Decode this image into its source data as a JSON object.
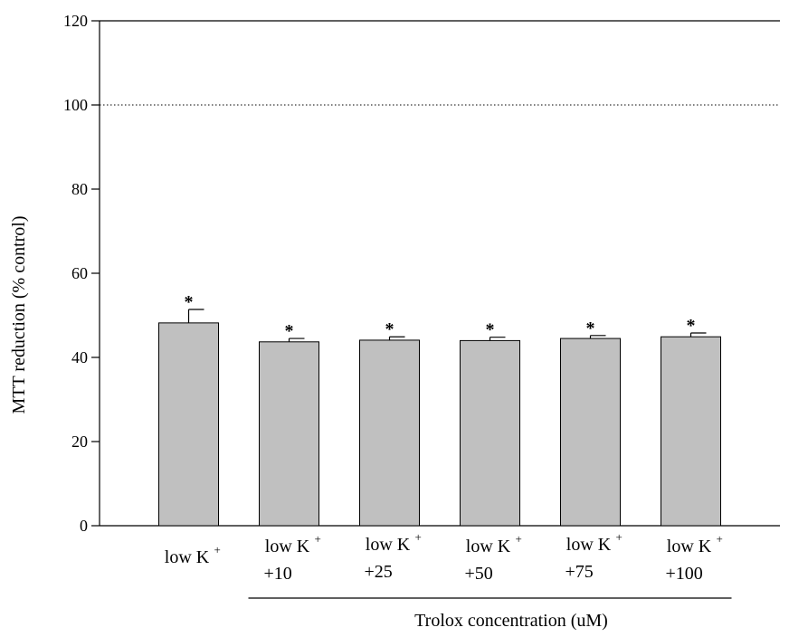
{
  "chart_data": {
    "type": "bar",
    "title": "",
    "ylabel": "MTT reduction (% control)",
    "xlabel": "Trolox concentration (uM)",
    "ylim": [
      0,
      120
    ],
    "yticks": [
      0,
      20,
      40,
      60,
      80,
      100,
      120
    ],
    "reference_line": {
      "y": 100,
      "style": "dotted"
    },
    "categories": [
      {
        "main": "low K",
        "sup": "+",
        "second": ""
      },
      {
        "main": "low K",
        "sup": "+",
        "second": "+10"
      },
      {
        "main": "low K",
        "sup": "+",
        "second": "+25"
      },
      {
        "main": "low K",
        "sup": "+",
        "second": "+50"
      },
      {
        "main": "low K",
        "sup": "+",
        "second": "+75"
      },
      {
        "main": "low K",
        "sup": "+",
        "second": "+100"
      }
    ],
    "values": [
      48.2,
      43.7,
      44.1,
      44.0,
      44.5,
      44.9
    ],
    "errors": [
      3.2,
      0.8,
      0.8,
      0.8,
      0.7,
      0.9
    ],
    "annotations": [
      "*",
      "*",
      "*",
      "*",
      "*",
      "*"
    ],
    "bar_color": "#c0c0c0",
    "bracket_groups": [
      1,
      5
    ],
    "grid": false,
    "legend": "none"
  }
}
